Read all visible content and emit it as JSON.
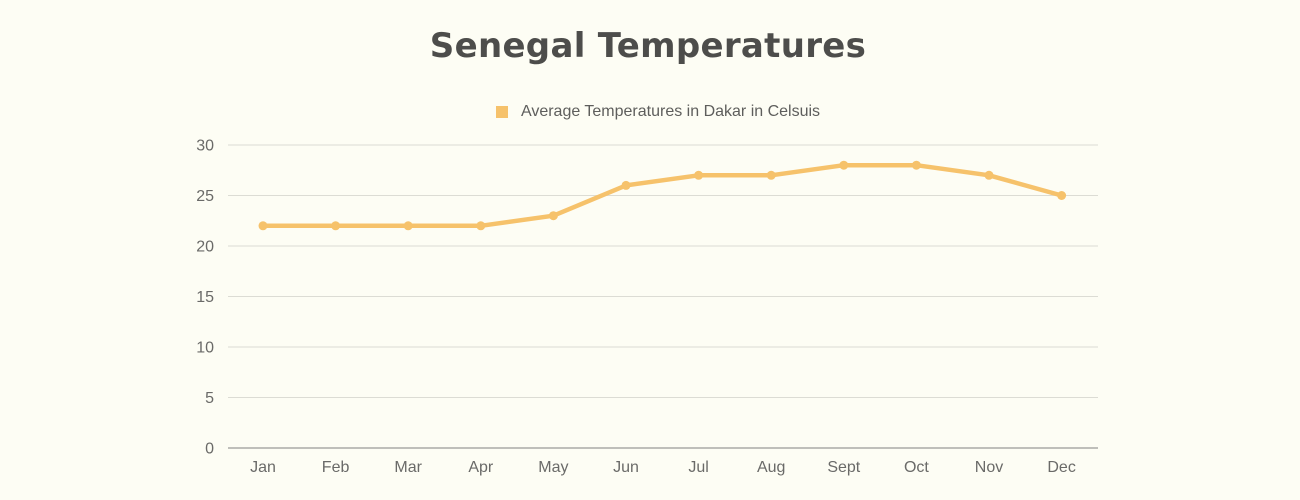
{
  "chart_data": {
    "type": "line",
    "title": "Senegal Temperatures",
    "xlabel": "",
    "ylabel": "",
    "categories": [
      "Jan",
      "Feb",
      "Mar",
      "Apr",
      "May",
      "Jun",
      "Jul",
      "Aug",
      "Sept",
      "Oct",
      "Nov",
      "Dec"
    ],
    "series": [
      {
        "name": "Average Temperatures in Dakar in Celsuis",
        "values": [
          22,
          22,
          22,
          22,
          23,
          26,
          27,
          27,
          28,
          28,
          27,
          25
        ],
        "color": "#f6c26b"
      }
    ],
    "ylim": [
      0,
      30
    ],
    "yticks": [
      "0",
      "5",
      "10",
      "15",
      "20",
      "25",
      "30"
    ],
    "grid": true,
    "legend_position": "top-center",
    "gridline_color": "#dcdcd4",
    "axis_color": "#9a9a96"
  }
}
